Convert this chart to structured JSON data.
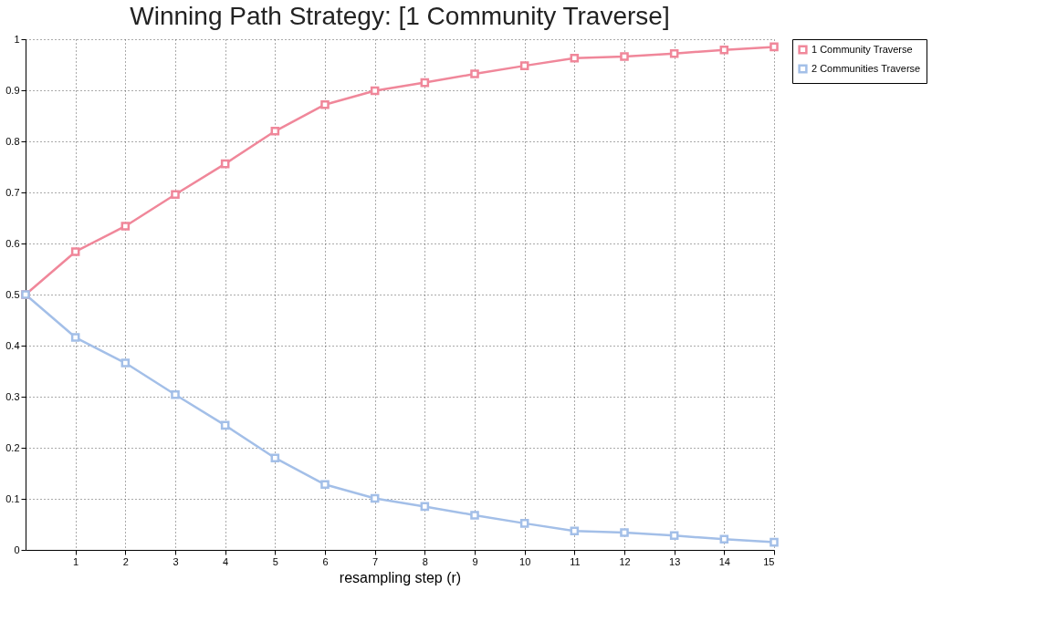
{
  "chart_data": {
    "type": "line",
    "title": "Winning Path Strategy: [1 Community Traverse]",
    "xlabel": "resampling step (r)",
    "x": [
      0,
      1,
      2,
      3,
      4,
      5,
      6,
      7,
      8,
      9,
      10,
      11,
      12,
      13,
      14,
      15
    ],
    "series": [
      {
        "name": "1 Community Traverse",
        "color": "#f0879a",
        "values": [
          0.5,
          0.584,
          0.634,
          0.696,
          0.756,
          0.82,
          0.872,
          0.899,
          0.915,
          0.932,
          0.948,
          0.963,
          0.966,
          0.972,
          0.979,
          0.985
        ]
      },
      {
        "name": "2 Communities Traverse",
        "color": "#a3bfe8",
        "values": [
          0.5,
          0.416,
          0.366,
          0.304,
          0.244,
          0.18,
          0.128,
          0.101,
          0.085,
          0.068,
          0.052,
          0.037,
          0.034,
          0.028,
          0.021,
          0.015
        ]
      }
    ],
    "xlim": [
      0,
      15
    ],
    "xticks": [
      1,
      2,
      3,
      4,
      5,
      6,
      7,
      8,
      9,
      10,
      11,
      12,
      13,
      14,
      15
    ],
    "ylim": [
      0,
      1
    ],
    "yticks": [
      0,
      0.1,
      0.2,
      0.3,
      0.4,
      0.5,
      0.6,
      0.7,
      0.8,
      0.9,
      1
    ],
    "grid": true,
    "legend": "right",
    "marker": "square",
    "line_style": "solid"
  }
}
